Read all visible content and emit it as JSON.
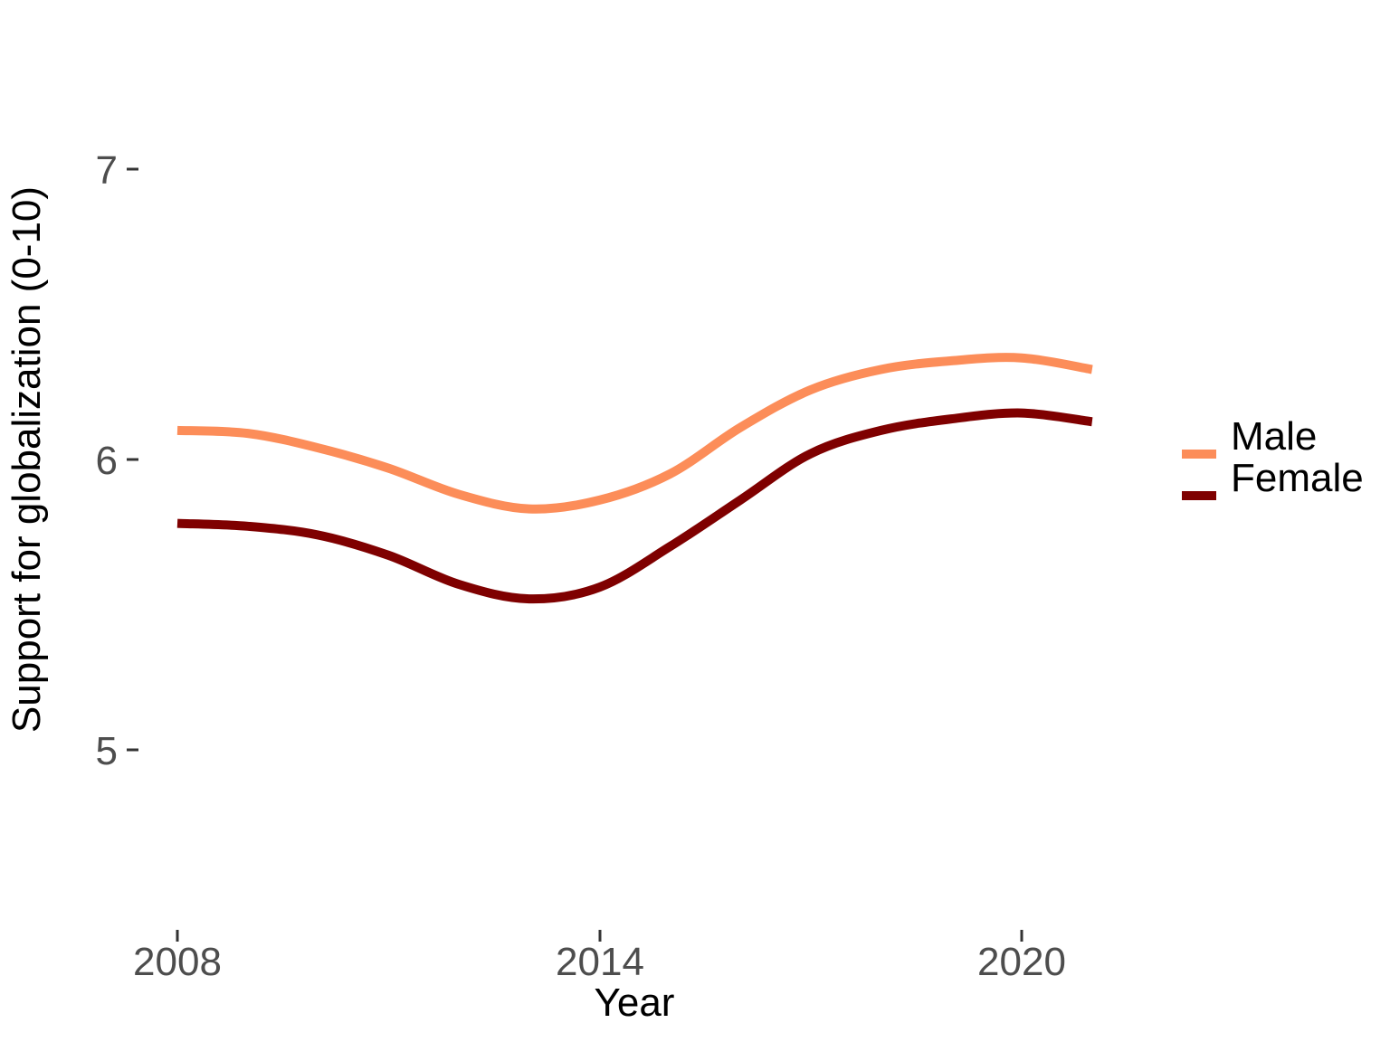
{
  "chart_data": {
    "type": "line",
    "title": "",
    "xlabel": "Year",
    "ylabel": "Support for globalization (0-10)",
    "x": [
      2008,
      2009,
      2010,
      2011,
      2012,
      2013,
      2014,
      2015,
      2016,
      2017,
      2018,
      2019,
      2020,
      2021
    ],
    "series": [
      {
        "name": "Male",
        "color": "#FC8D59",
        "values": [
          6.1,
          6.09,
          6.04,
          5.97,
          5.88,
          5.83,
          5.86,
          5.95,
          6.11,
          6.24,
          6.31,
          6.34,
          6.35,
          6.31
        ]
      },
      {
        "name": "Female",
        "color": "#7F0000",
        "values": [
          5.78,
          5.77,
          5.74,
          5.67,
          5.57,
          5.52,
          5.56,
          5.7,
          5.86,
          6.02,
          6.1,
          6.14,
          6.16,
          6.13
        ]
      }
    ],
    "xticks": [
      "2008",
      "2014",
      "2020"
    ],
    "yticks": [
      "5",
      "6",
      "7"
    ],
    "xlim": [
      2007.5,
      2021.7
    ],
    "ylim": [
      4.95,
      7.45
    ],
    "grid": false,
    "legend_position": "right"
  },
  "colors": {
    "background": "#FFFFFF",
    "axis_text": "#4D4D4D",
    "axis_title": "#000000",
    "tick_mark": "#333333",
    "male_line": "#FC8D59",
    "female_line": "#7F0000"
  }
}
